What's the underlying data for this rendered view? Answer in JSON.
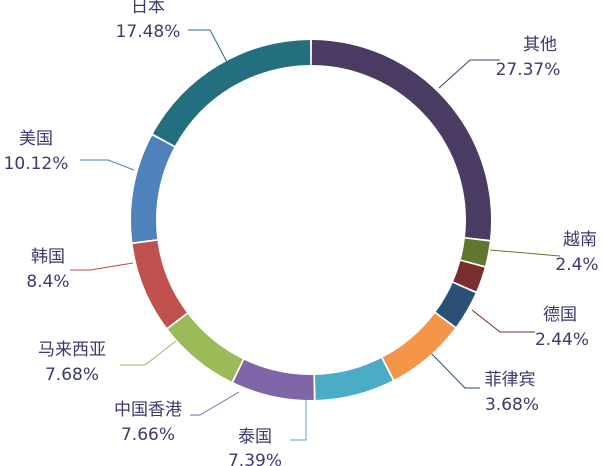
{
  "chart_data": {
    "type": "pie",
    "variant": "donut",
    "title": "",
    "legend": "none",
    "slices": [
      {
        "name": "其他",
        "value": 27.37,
        "label": "27.37%",
        "color": "#4a3b63"
      },
      {
        "name": "越南",
        "value": 2.4,
        "label": "2.4%",
        "color": "#5f782e"
      },
      {
        "name": "德国",
        "value": 2.44,
        "label": "2.44%",
        "color": "#7a2e2b"
      },
      {
        "name": "菲律宾",
        "value": 3.68,
        "label": "3.68%",
        "color": "#2b4f75"
      },
      {
        "name": "泰国",
        "value": 7.39,
        "label": "7.39%",
        "color": "#f5954a"
      },
      {
        "name": "泰国",
        "value": 7.39,
        "label": "7.39%",
        "color": "#4bacc6"
      },
      {
        "name": "中国香港",
        "value": 7.66,
        "label": "7.66%",
        "color": "#7f66a8"
      },
      {
        "name": "马来西亚",
        "value": 7.68,
        "label": "7.68%",
        "color": "#9bbb59"
      },
      {
        "name": "韩国",
        "value": 8.4,
        "label": "8.4%",
        "color": "#c0504d"
      },
      {
        "name": "美国",
        "value": 10.12,
        "label": "10.12%",
        "color": "#4f81bd"
      },
      {
        "name": "日本",
        "value": 17.48,
        "label": "17.48%",
        "color": "#236f7f"
      }
    ]
  }
}
